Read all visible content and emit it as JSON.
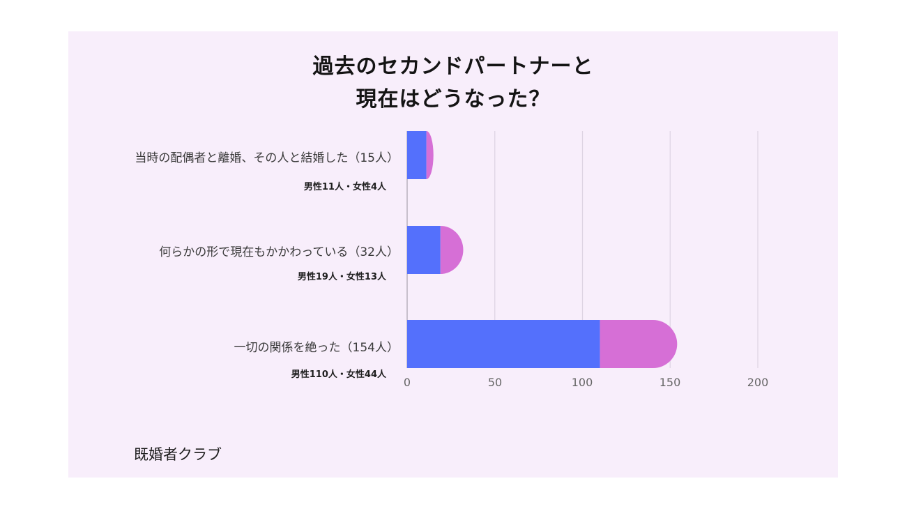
{
  "chart_data": {
    "type": "bar",
    "orientation": "horizontal",
    "stacked": true,
    "title_lines": [
      "過去のセカンドパートナーと",
      "現在はどうなった？"
    ],
    "categories": [
      "当時の配偶者と離婚、その人と結婚した（15人）",
      "何らかの形で現在もかかわっている（32人）",
      "一切の関係を絶った（154人）"
    ],
    "sublabels": [
      "男性11人・女性4人",
      "男性19人・女性13人",
      "男性110人・女性44人"
    ],
    "series": [
      {
        "values": [
          11,
          19,
          110
        ],
        "color": "#5470fc"
      },
      {
        "values": [
          4,
          13,
          44
        ],
        "color": "#d66fd6"
      }
    ],
    "xlim": [
      0,
      200
    ],
    "xticks": [
      "0",
      "50",
      "100",
      "150",
      "200"
    ],
    "grid": true
  },
  "source": "既婚者クラブ"
}
